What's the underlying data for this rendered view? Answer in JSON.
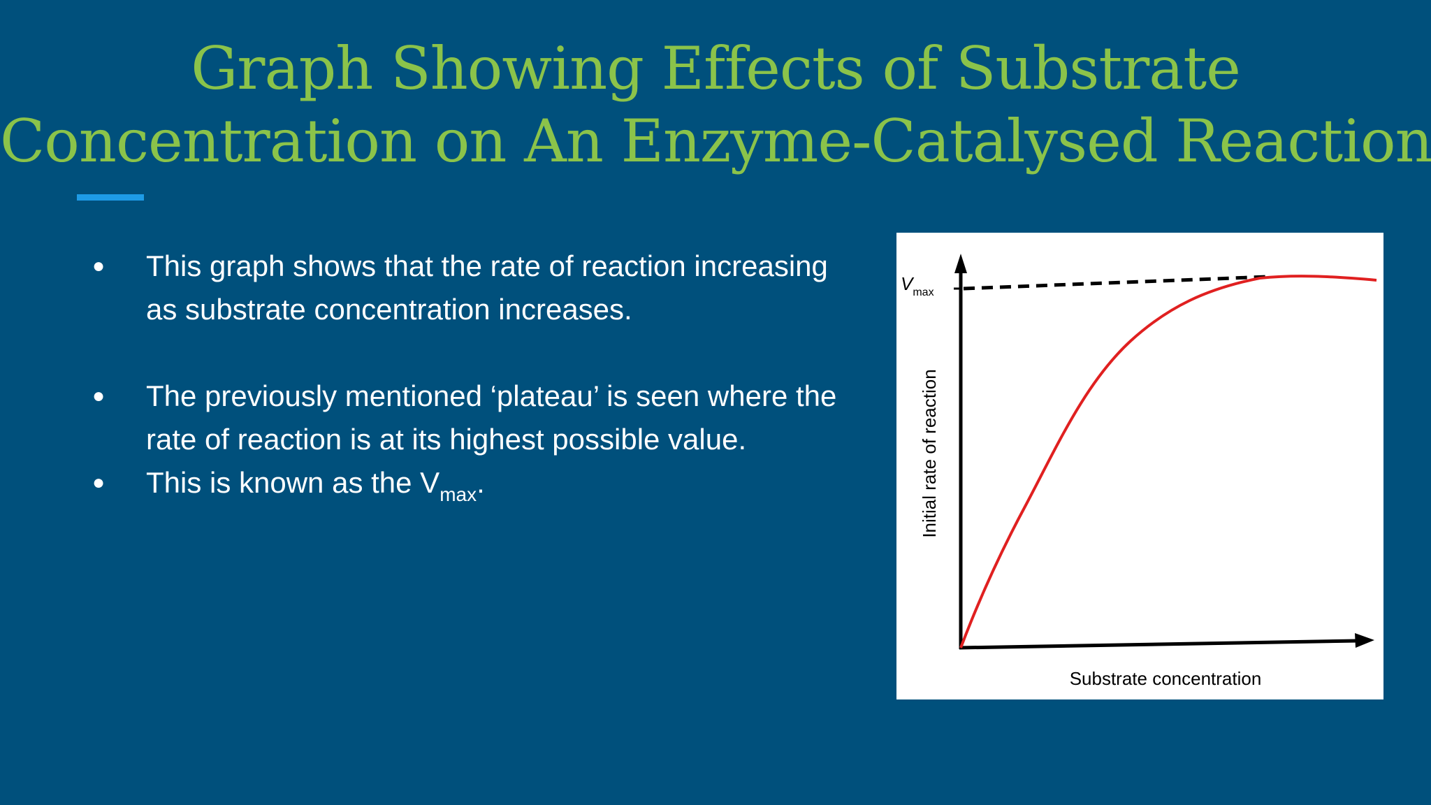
{
  "slide": {
    "title_lines": [
      "Graph Showing Effects of Substrate",
      "Concentration on An Enzyme-Catalysed Reaction"
    ],
    "bullets": [
      {
        "text": "This graph shows that the rate of reaction increasing as substrate concentration increases."
      },
      {
        "text": "The previously mentioned ‘plateau’ is seen where the rate of reaction is at its highest possible value."
      },
      {
        "text_before": "This is known as the V",
        "subscript": "max",
        "text_after": "."
      }
    ],
    "bullet_symbol": "●",
    "colors": {
      "background": "#00507c",
      "title": "#8bc34a",
      "accent": "#1e9be6",
      "curve": "#e02020"
    }
  },
  "figure": {
    "vmax_label": "V",
    "vmax_sub": "max",
    "y_axis_label": "Initial rate of reaction",
    "x_axis_label": "Substrate concentration",
    "curve_shape": "saturating (Michaelis–Menten) curve rising from origin to a plateau at Vmax",
    "vmax_line": "dashed"
  }
}
